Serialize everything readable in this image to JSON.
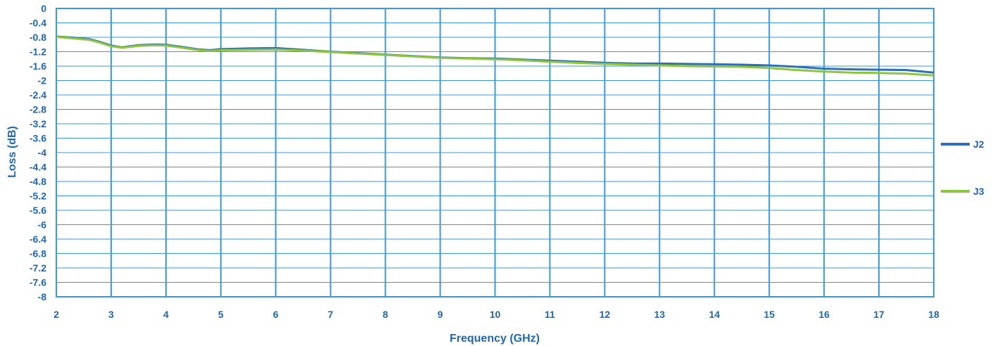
{
  "chart_data": {
    "type": "line",
    "title": "",
    "xlabel": "Frequency (GHz)",
    "ylabel": "Loss (dB)",
    "xlim": [
      2,
      18
    ],
    "ylim": [
      -8,
      0
    ],
    "xticks": [
      "2",
      "3",
      "4",
      "5",
      "6",
      "7",
      "8",
      "9",
      "10",
      "11",
      "12",
      "13",
      "14",
      "15",
      "16",
      "17",
      "18"
    ],
    "yticks": [
      "0",
      "-0.4",
      "-0.8",
      "-1.2",
      "-1.6",
      "-2",
      "-2.4",
      "-2.8",
      "-3.2",
      "-3.6",
      "-4",
      "-4.4",
      "-4.8",
      "-5.2",
      "-5.6",
      "-6",
      "-6.4",
      "-6.8",
      "-7.2",
      "-7.6",
      "-8"
    ],
    "grid": true,
    "legend": "right",
    "series": [
      {
        "name": "J2",
        "color": "#2e6fb7",
        "x": [
          2.0,
          2.3,
          2.6,
          2.8,
          3.0,
          3.2,
          3.5,
          3.8,
          4.0,
          4.3,
          4.6,
          4.8,
          5.0,
          5.5,
          6.0,
          6.5,
          7.0,
          7.5,
          8.0,
          8.5,
          9.0,
          9.5,
          10.0,
          10.5,
          11.0,
          11.5,
          12.0,
          12.5,
          13.0,
          13.5,
          14.0,
          14.5,
          15.0,
          15.5,
          16.0,
          16.5,
          17.0,
          17.5,
          18.0
        ],
        "y": [
          -0.78,
          -0.81,
          -0.85,
          -0.93,
          -1.03,
          -1.08,
          -1.02,
          -1.0,
          -1.01,
          -1.07,
          -1.14,
          -1.16,
          -1.13,
          -1.11,
          -1.1,
          -1.15,
          -1.2,
          -1.24,
          -1.28,
          -1.32,
          -1.36,
          -1.38,
          -1.39,
          -1.42,
          -1.45,
          -1.48,
          -1.51,
          -1.53,
          -1.53,
          -1.54,
          -1.55,
          -1.56,
          -1.58,
          -1.62,
          -1.67,
          -1.69,
          -1.7,
          -1.71,
          -1.78
        ]
      },
      {
        "name": "J3",
        "color": "#8cc63f",
        "x": [
          2.0,
          2.3,
          2.6,
          2.8,
          3.0,
          3.2,
          3.5,
          3.8,
          4.0,
          4.3,
          4.6,
          4.8,
          5.0,
          5.5,
          6.0,
          6.5,
          7.0,
          7.5,
          8.0,
          8.5,
          9.0,
          9.5,
          10.0,
          10.5,
          11.0,
          11.5,
          12.0,
          12.5,
          13.0,
          13.5,
          14.0,
          14.5,
          15.0,
          15.5,
          16.0,
          16.5,
          17.0,
          17.5,
          18.0
        ],
        "y": [
          -0.79,
          -0.83,
          -0.87,
          -0.95,
          -1.05,
          -1.09,
          -1.04,
          -1.02,
          -1.03,
          -1.09,
          -1.16,
          -1.18,
          -1.16,
          -1.15,
          -1.14,
          -1.17,
          -1.21,
          -1.25,
          -1.29,
          -1.33,
          -1.37,
          -1.39,
          -1.41,
          -1.44,
          -1.48,
          -1.51,
          -1.54,
          -1.56,
          -1.58,
          -1.6,
          -1.61,
          -1.62,
          -1.65,
          -1.71,
          -1.75,
          -1.78,
          -1.79,
          -1.81,
          -1.86
        ]
      }
    ]
  },
  "style": {
    "grid_color": "#3a9ad9",
    "text_color": "#1f66b0"
  }
}
